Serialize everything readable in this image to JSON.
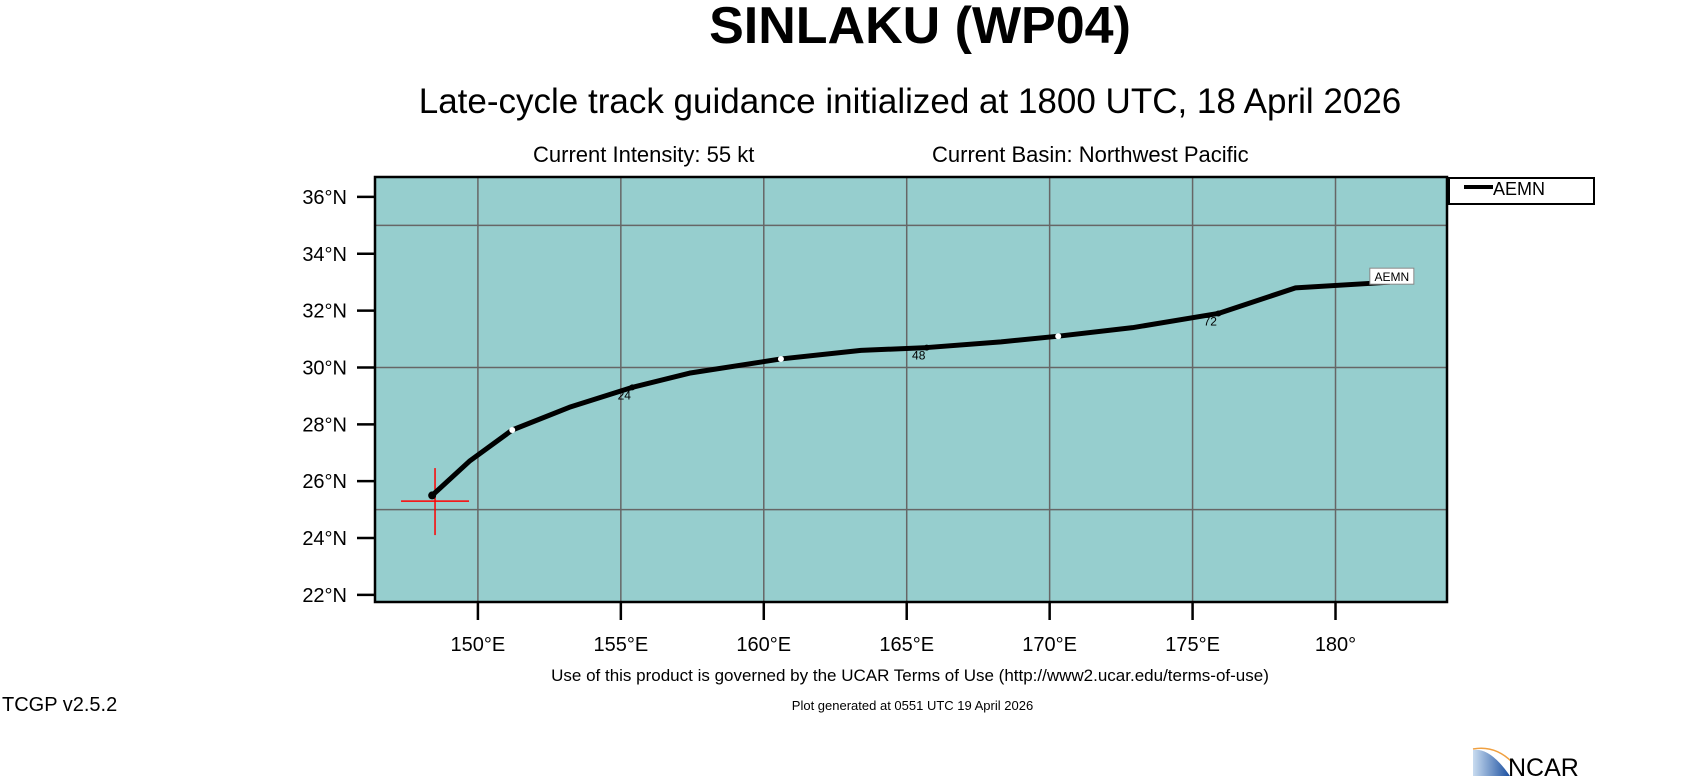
{
  "header": {
    "title": "SINLAKU (WP04)",
    "subtitle": "Late-cycle track guidance initialized at 1800 UTC, 18 April 2026",
    "intensity": "Current Intensity: 55 kt",
    "basin": "Current Basin: Northwest Pacific"
  },
  "footer": {
    "terms": "Use of this product is governed by the UCAR Terms of Use (http://www2.ucar.edu/terms-of-use)",
    "generated": "Plot generated at 0551 UTC   19 April 2026",
    "version": "TCGP v2.5.2",
    "logo": "NCAR"
  },
  "colors": {
    "ocean": "#96cece",
    "grid": "#666666",
    "track": "#000000",
    "marker": "#ff0000"
  },
  "chart_data": {
    "type": "line",
    "title": "SINLAKU (WP04)",
    "xlim": [
      146.4,
      183.9
    ],
    "ylim": [
      21.75,
      36.7
    ],
    "x_ticks": [
      150,
      155,
      160,
      165,
      170,
      175,
      180
    ],
    "x_tick_labels": [
      "150°E",
      "155°E",
      "160°E",
      "165°E",
      "170°E",
      "175°E",
      "180°"
    ],
    "y_ticks": [
      22,
      24,
      26,
      28,
      30,
      32,
      34,
      36
    ],
    "y_tick_labels": [
      "22°N",
      "24°N",
      "26°N",
      "28°N",
      "30°N",
      "32°N",
      "34°N",
      "36°N"
    ],
    "grid_lon": [
      150,
      155,
      160,
      165,
      170,
      175,
      180
    ],
    "grid_lat": [
      25,
      30,
      35
    ],
    "legend": {
      "entries": [
        "AEMN"
      ],
      "placement": "right-top"
    },
    "current_position": {
      "lon": 148.5,
      "lat": 25.3
    },
    "series": [
      {
        "name": "AEMN",
        "lon": [
          148.4,
          149.7,
          151.2,
          153.2,
          155.4,
          157.4,
          160.6,
          163.4,
          165.7,
          168.3,
          170.3,
          172.9,
          175.9,
          178.6,
          181.9
        ],
        "lat": [
          25.5,
          26.7,
          27.8,
          28.6,
          29.3,
          29.8,
          30.3,
          30.6,
          30.7,
          30.9,
          31.1,
          31.4,
          31.9,
          32.8,
          33.0
        ],
        "white_dots": [
          2,
          6,
          10
        ],
        "hour_labels": [
          {
            "index": 4,
            "text": "24"
          },
          {
            "index": 8,
            "text": "48"
          },
          {
            "index": 12,
            "text": "72"
          }
        ]
      }
    ]
  }
}
